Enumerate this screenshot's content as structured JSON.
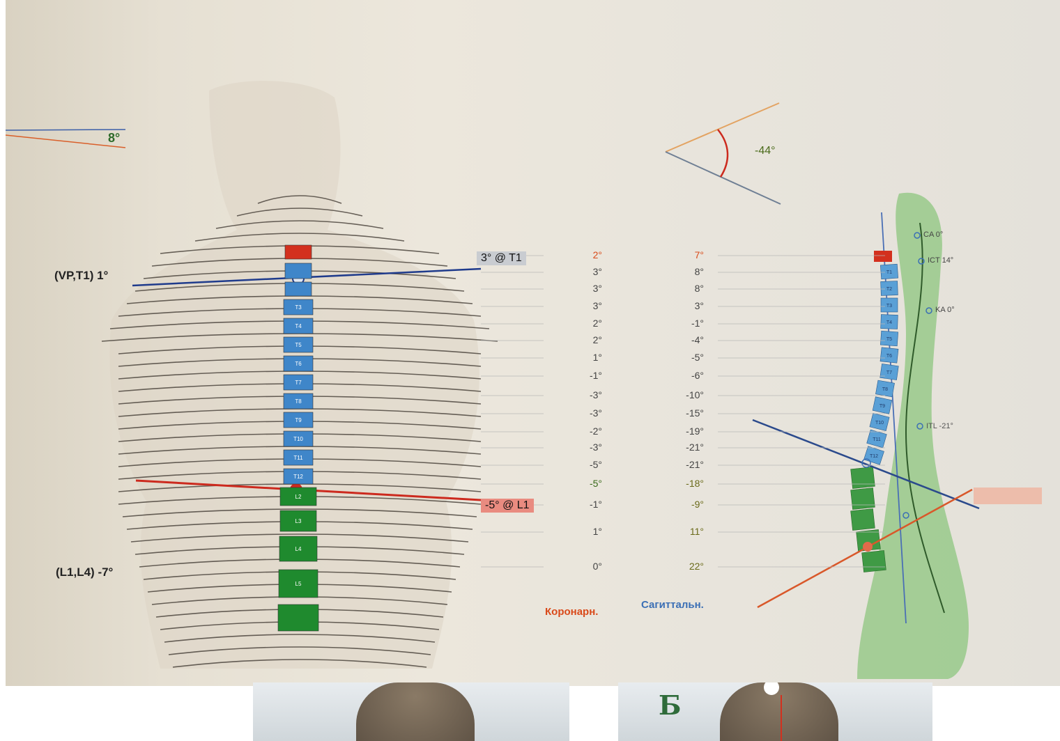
{
  "left_figure": {
    "shoulder_angle": "8°",
    "label_vp_t1": "(VP,T1) 1°",
    "label_t1_tag": "3° @ T1",
    "label_l1_tag": "-5° @ L1",
    "label_l1_l4": "(L1,L4) -7°",
    "vertebra_labels": [
      "T3",
      "T4",
      "T5",
      "T6",
      "T7",
      "T8",
      "T9",
      "T10",
      "T11",
      "T12",
      "L2",
      "L3",
      "L4",
      "L5"
    ]
  },
  "coronal_values": [
    "2°",
    "3°",
    "3°",
    "3°",
    "2°",
    "2°",
    "1°",
    "-1°",
    "-3°",
    "-3°",
    "-2°",
    "-3°",
    "-5°",
    "-5°",
    "-1°",
    "1°",
    "0°"
  ],
  "sagittal_values": [
    "7°",
    "8°",
    "8°",
    "3°",
    "-1°",
    "-4°",
    "-5°",
    "-6°",
    "-10°",
    "-15°",
    "-19°",
    "-21°",
    "-21°",
    "-18°",
    "-9°",
    "11°",
    "22°"
  ],
  "legend": {
    "coronal": "Коронарн.",
    "sagittal": "Сагиттальн."
  },
  "right_figure": {
    "head_angle": "-44°",
    "markers": [
      "CA 0°",
      "ICT 14°",
      "KA 0°",
      "ITL -21°"
    ],
    "vertebra_labels": [
      "T1",
      "T2",
      "T3",
      "T4",
      "T5",
      "T6",
      "T7",
      "T8",
      "T9",
      "T10",
      "T11",
      "T12"
    ]
  },
  "photos": {
    "right_letter": "Б"
  },
  "colors": {
    "coronal": "#d94a1a",
    "sagittal": "#3b6fb5",
    "thoracic": "#3f86c9",
    "lumbar": "#1f8a2e",
    "cervical": "#d3301e"
  }
}
